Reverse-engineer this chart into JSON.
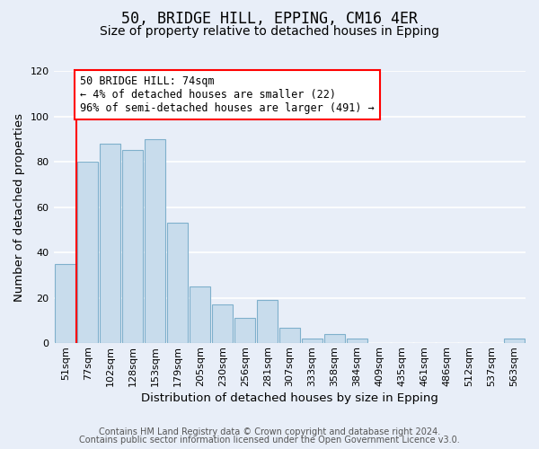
{
  "title": "50, BRIDGE HILL, EPPING, CM16 4ER",
  "subtitle": "Size of property relative to detached houses in Epping",
  "xlabel": "Distribution of detached houses by size in Epping",
  "ylabel": "Number of detached properties",
  "bar_labels": [
    "51sqm",
    "77sqm",
    "102sqm",
    "128sqm",
    "153sqm",
    "179sqm",
    "205sqm",
    "230sqm",
    "256sqm",
    "281sqm",
    "307sqm",
    "333sqm",
    "358sqm",
    "384sqm",
    "409sqm",
    "435sqm",
    "461sqm",
    "486sqm",
    "512sqm",
    "537sqm",
    "563sqm"
  ],
  "bar_heights": [
    35,
    80,
    88,
    85,
    90,
    53,
    25,
    17,
    11,
    19,
    7,
    2,
    4,
    2,
    0,
    0,
    0,
    0,
    0,
    0,
    2
  ],
  "bar_color": "#c8dcec",
  "bar_edge_color": "#7fb0cc",
  "annotation_text": "50 BRIDGE HILL: 74sqm\n← 4% of detached houses are smaller (22)\n96% of semi-detached houses are larger (491) →",
  "annotation_box_color": "white",
  "annotation_box_edgecolor": "red",
  "red_line_bar_index": 1,
  "ylim": [
    0,
    120
  ],
  "yticks": [
    0,
    20,
    40,
    60,
    80,
    100,
    120
  ],
  "footer_line1": "Contains HM Land Registry data © Crown copyright and database right 2024.",
  "footer_line2": "Contains public sector information licensed under the Open Government Licence v3.0.",
  "bg_color": "#e8eef8",
  "grid_color": "white",
  "title_fontsize": 12,
  "subtitle_fontsize": 10,
  "axis_label_fontsize": 9.5,
  "tick_fontsize": 8,
  "footer_fontsize": 7,
  "annot_fontsize": 8.5
}
